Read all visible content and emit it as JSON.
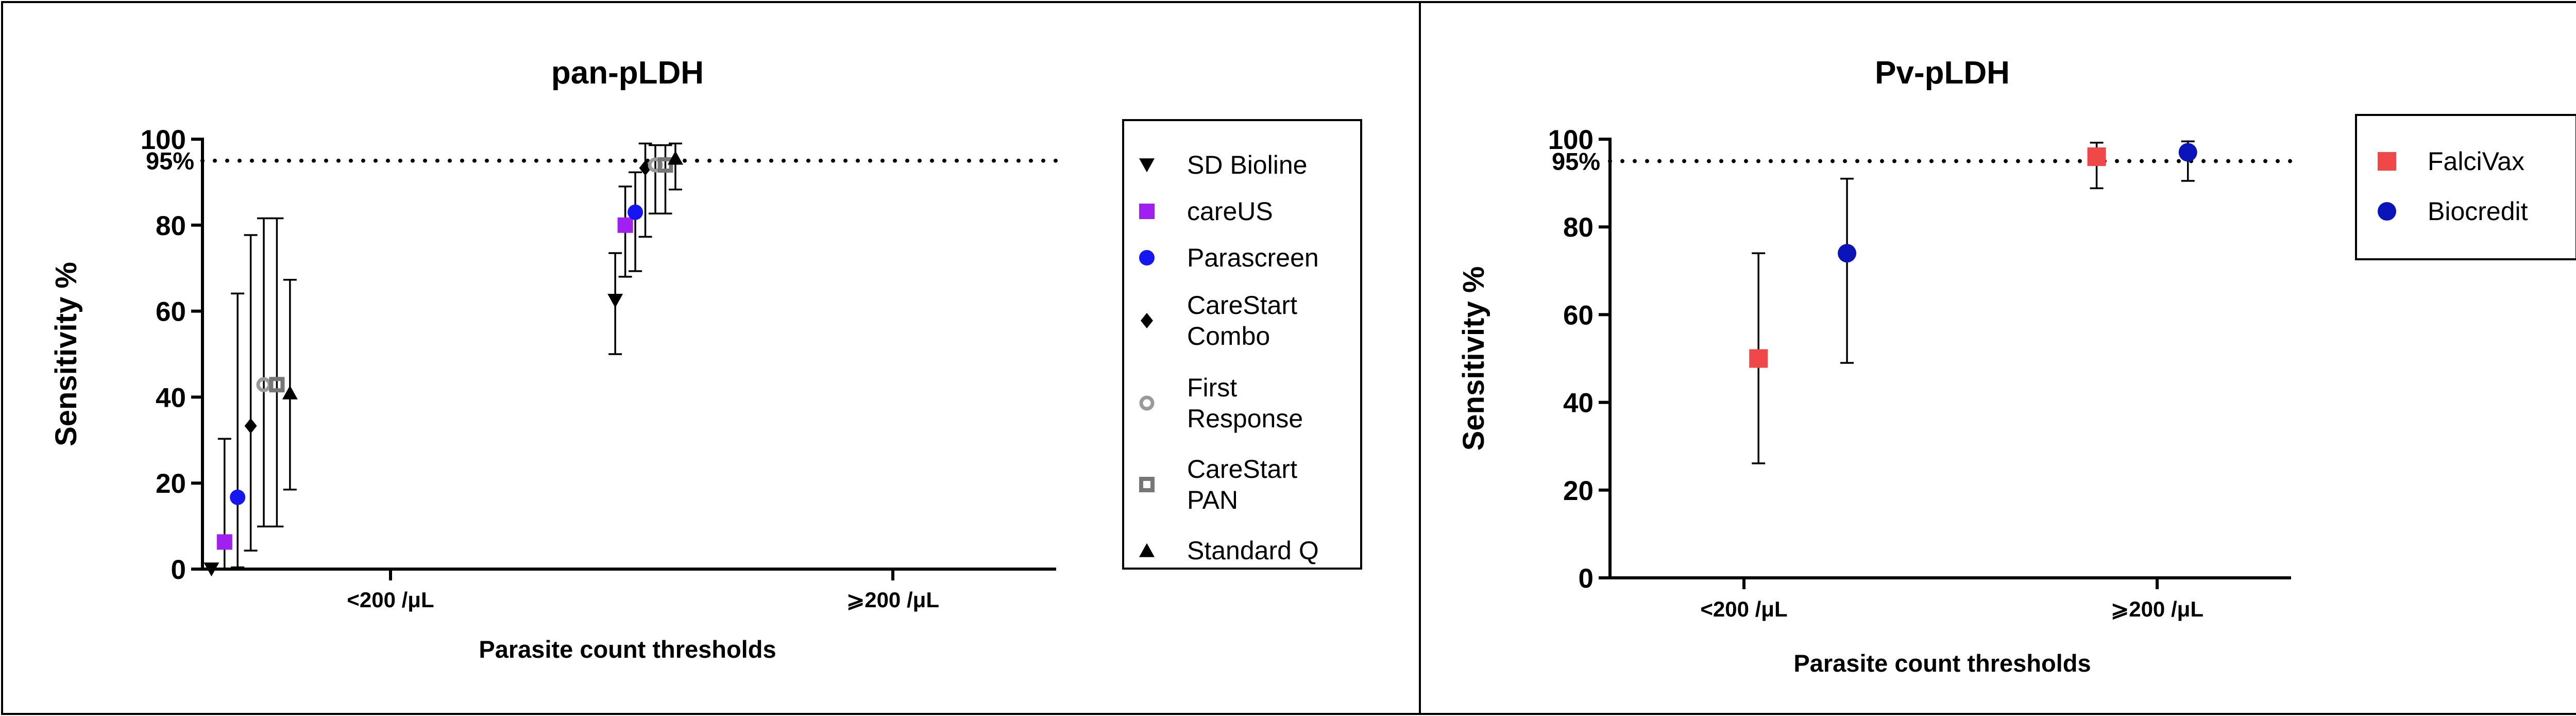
{
  "chart_data": [
    {
      "type": "scatter",
      "title": "pan-pLDH",
      "ylabel": "Sensitivity %",
      "xlabel": "Parasite count thresholds",
      "categories": [
        "<200 /μL",
        "⩾200 /μL"
      ],
      "ylim": [
        0,
        100
      ],
      "yticks": [
        "0",
        "20",
        "40",
        "60",
        "80",
        "100"
      ],
      "reference_line": {
        "value": 95,
        "label": "95%",
        "style": "dotted"
      },
      "grid": false,
      "legend_position": "right",
      "series": [
        {
          "name": "SD Bioline",
          "marker": "triangle-down",
          "color": "#000000",
          "values": [
            0,
            62.5
          ],
          "ci_low": [
            0,
            50
          ],
          "ci_high": [
            0,
            73.5
          ]
        },
        {
          "name": "careUS",
          "marker": "square",
          "color": "#a020f0",
          "values": [
            6.3,
            80
          ],
          "ci_low": [
            0,
            68
          ],
          "ci_high": [
            30.3,
            89
          ]
        },
        {
          "name": "Parascreen",
          "marker": "circle",
          "color": "#1616f0",
          "values": [
            16.7,
            83
          ],
          "ci_low": [
            0.4,
            69.3
          ],
          "ci_high": [
            64.1,
            92.3
          ]
        },
        {
          "name": "CareStart Combo",
          "marker": "diamond",
          "color": "#000000",
          "values": [
            33.3,
            93.3
          ],
          "ci_low": [
            4.3,
            77.3
          ],
          "ci_high": [
            77.7,
            99
          ]
        },
        {
          "name": "First Response",
          "marker": "open-circle",
          "color": "#9a9a9a",
          "values": [
            42.9,
            94
          ],
          "ci_low": [
            9.9,
            82.7
          ],
          "ci_high": [
            81.6,
            98.6
          ]
        },
        {
          "name": "CareStart PAN",
          "marker": "open-square",
          "color": "#777777",
          "values": [
            42.9,
            94
          ],
          "ci_low": [
            9.9,
            82.7
          ],
          "ci_high": [
            81.6,
            98.6
          ]
        },
        {
          "name": "Standard Q",
          "marker": "triangle-up",
          "color": "#000000",
          "values": [
            41,
            95.6
          ],
          "ci_low": [
            18.5,
            88.3
          ],
          "ci_high": [
            67.3,
            99
          ]
        }
      ]
    },
    {
      "type": "scatter",
      "title": "Pv-pLDH",
      "ylabel": "Sensitivity %",
      "xlabel": "Parasite count thresholds",
      "categories": [
        "<200 /μL",
        "⩾200 /μL"
      ],
      "ylim": [
        0,
        100
      ],
      "yticks": [
        "0",
        "20",
        "40",
        "60",
        "80",
        "100"
      ],
      "reference_line": {
        "value": 95,
        "label": "95%",
        "style": "dotted"
      },
      "grid": false,
      "legend_position": "right",
      "series": [
        {
          "name": "FalciVax",
          "marker": "square",
          "color": "#f04848",
          "values": [
            50,
            96
          ],
          "ci_low": [
            26.1,
            88.8
          ],
          "ci_high": [
            74,
            99.2
          ]
        },
        {
          "name": "Biocredit",
          "marker": "circle",
          "color": "#0a14b8",
          "values": [
            74,
            97
          ],
          "ci_low": [
            49,
            90.5
          ],
          "ci_high": [
            91,
            99.5
          ]
        }
      ]
    }
  ]
}
